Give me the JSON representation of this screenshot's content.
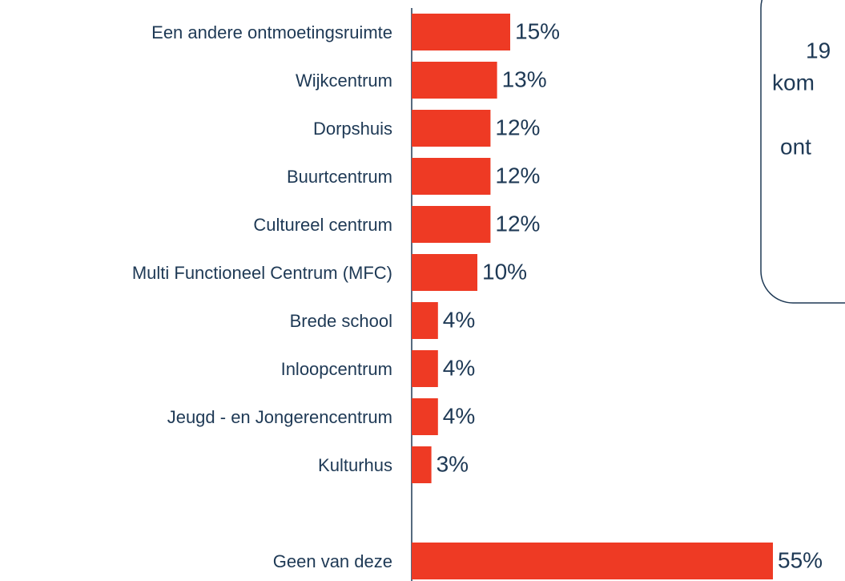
{
  "chart_data": {
    "type": "bar",
    "orientation": "horizontal",
    "categories": [
      "Een andere ontmoetingsruimte",
      "Wijkcentrum",
      "Dorpshuis",
      "Buurtcentrum",
      "Cultureel centrum",
      "Multi Functioneel Centrum (MFC)",
      "Brede school",
      "Inloopcentrum",
      "Jeugd - en Jongerencentrum",
      "Kulturhus",
      null,
      "Geen van deze"
    ],
    "values": [
      15,
      13,
      12,
      12,
      12,
      10,
      4,
      4,
      4,
      3,
      null,
      55
    ],
    "value_labels": [
      "15%",
      "13%",
      "12%",
      "12%",
      "12%",
      "10%",
      "4%",
      "4%",
      "4%",
      "3%",
      null,
      "55%"
    ],
    "color": "#ee3a24",
    "annotation": [
      "19",
      "kom",
      "ont"
    ]
  }
}
